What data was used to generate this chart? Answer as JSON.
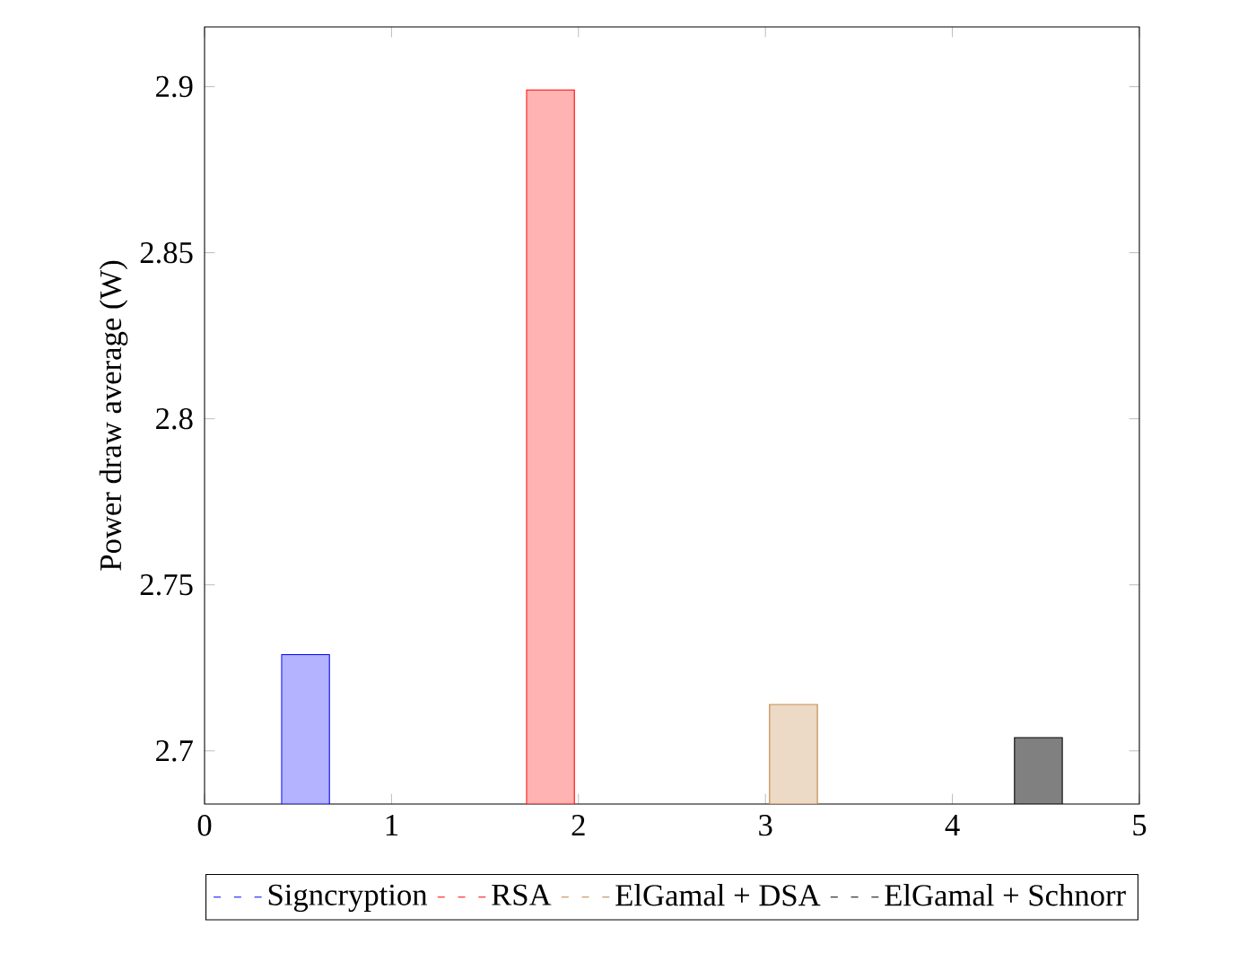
{
  "chart_data": {
    "type": "bar",
    "ylabel": "Power draw average (W)",
    "xlim": [
      0,
      5
    ],
    "ylim": [
      2.684,
      2.918
    ],
    "xticks": [
      0,
      1,
      2,
      3,
      4,
      5
    ],
    "yticks": [
      2.7,
      2.75,
      2.8,
      2.85,
      2.9
    ],
    "legend": "bottom",
    "series": [
      {
        "name": "Signcryption",
        "color": "#b3b3ff",
        "x": [
          0.54
        ],
        "values": [
          2.729
        ]
      },
      {
        "name": "RSA",
        "color": "#ffb3b3",
        "x": [
          1.85
        ],
        "values": [
          2.899
        ]
      },
      {
        "name": "ElGamal + DSA",
        "color": "#ecd9c6",
        "x": [
          3.15
        ],
        "values": [
          2.714
        ]
      },
      {
        "name": "ElGamal + Schnorr",
        "color": "#808080",
        "x": [
          4.46
        ],
        "values": [
          2.704
        ]
      }
    ]
  }
}
